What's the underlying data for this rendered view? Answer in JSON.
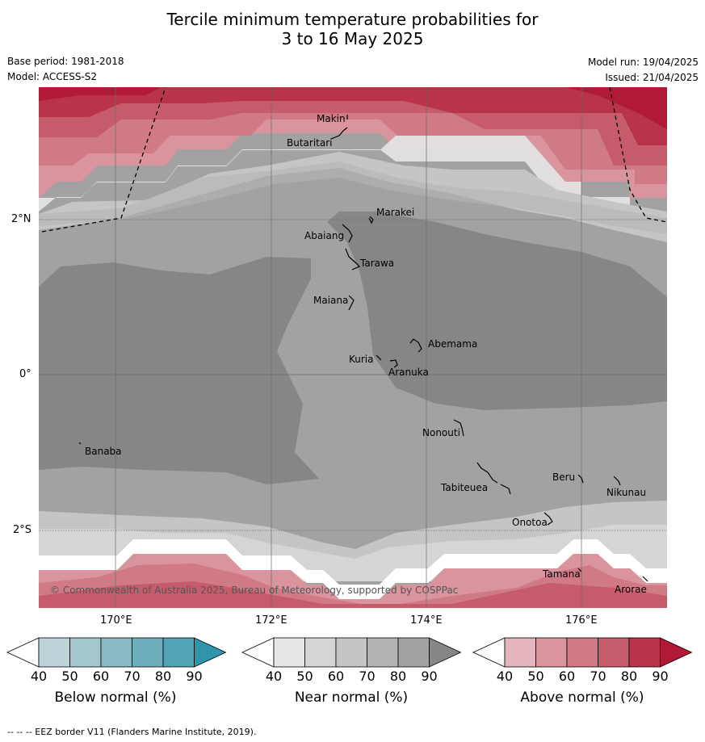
{
  "title_line1": "Tercile minimum temperature probabilities for",
  "title_line2": "3 to 16 May 2025",
  "meta": {
    "base_period": "Base period: 1981-2018",
    "model": "Model: ACCESS-S2",
    "model_run": "Model run: 19/04/2025",
    "issued": "Issued: 21/04/2025"
  },
  "axes": {
    "lat_labels": [
      "2°N",
      "0°",
      "2°S"
    ],
    "lon_labels": [
      "170°E",
      "172°E",
      "174°E",
      "176°E"
    ]
  },
  "copyright": "© Commonwealth of Australia 2025, Bureau of Meteorology, supported by COSPPac",
  "islands": [
    "Makin",
    "Butaritari",
    "Marakei",
    "Abaiang",
    "Tarawa",
    "Maiana",
    "Abemama",
    "Kuria",
    "Aranuka",
    "Nonouti",
    "Banaba",
    "Beru",
    "Tabiteuea",
    "Nikunau",
    "Onotoa",
    "Tamana",
    "Arorae"
  ],
  "colorbars": [
    {
      "label": "Below normal (%)",
      "ticks": [
        "40",
        "50",
        "60",
        "70",
        "80",
        "90"
      ],
      "colors": [
        "#ffffff",
        "#bcd3da",
        "#a4c6cf",
        "#8ab9c4",
        "#6eaebb",
        "#4fa3b2",
        "#2e96a8"
      ]
    },
    {
      "label": "Near normal (%)",
      "ticks": [
        "40",
        "50",
        "60",
        "70",
        "80",
        "90"
      ],
      "colors": [
        "#ffffff",
        "#e6e6e6",
        "#d5d5d5",
        "#c5c5c5",
        "#b4b4b4",
        "#a2a2a2",
        "#868686"
      ]
    },
    {
      "label": "Above normal (%)",
      "ticks": [
        "40",
        "50",
        "60",
        "70",
        "80",
        "90"
      ],
      "colors": [
        "#ffffff",
        "#e2b6bc",
        "#d9949e",
        "#cf7a84",
        "#c65c6b",
        "#b93448",
        "#b01a36"
      ]
    }
  ],
  "footer": "--  --  -- EEZ border V11 (Flanders Marine Institute, 2019)."
}
